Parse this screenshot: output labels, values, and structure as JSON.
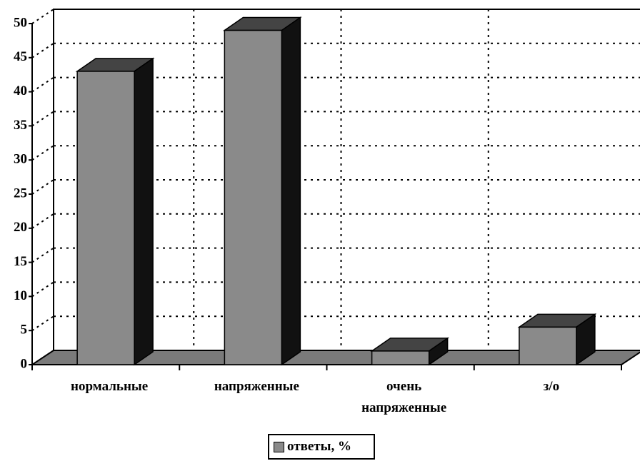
{
  "chart_data": {
    "type": "bar3d",
    "categories": [
      "нормальные",
      "напряженные",
      "очень напряженные",
      "з/о"
    ],
    "series": [
      {
        "name": "ответы, %",
        "color": "#8a8a8a",
        "values": [
          43,
          49,
          2,
          5.5
        ]
      }
    ],
    "ylim": [
      0,
      50
    ],
    "yticks": [
      0,
      5,
      10,
      15,
      20,
      25,
      30,
      35,
      40,
      45,
      50
    ],
    "grid": true
  }
}
